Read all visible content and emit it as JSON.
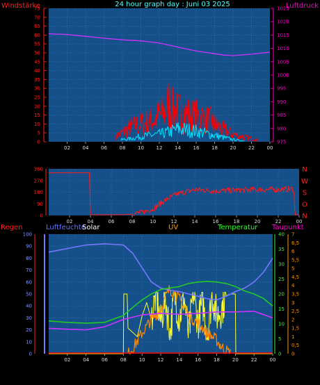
{
  "colors": {
    "plot_bg": "#15508a",
    "grid": "#3f78b0",
    "wind": "#ff0000",
    "gust": "#00e5ff",
    "pressure": "#cc33ff",
    "direction": "#ff1a1a",
    "humidity": "#7777ff",
    "solar": "#ffff33",
    "uv": "#ff8800",
    "temperature": "#22cc22",
    "dewpoint": "#cc33ff",
    "rain": "#ff0000",
    "label_red": "#ff2222",
    "label_magenta": "#ff00cc",
    "label_cyan": "#55ffff",
    "label_white": "#ffffff",
    "label_orange": "#ff9900",
    "label_green": "#33ff33",
    "tick_yellow": "#ffcc00",
    "tick_cyan": "#00ffff"
  },
  "chart_data": [
    {
      "type": "line",
      "title": "24 hour graph day : Juni 03 2025",
      "x_ticks": [
        "02",
        "04",
        "06",
        "08",
        "10",
        "12",
        "14",
        "16",
        "18",
        "20",
        "22",
        "00"
      ],
      "left_axis": {
        "label": "Windstärke",
        "ticks": [
          "0",
          "5",
          "10",
          "15",
          "20",
          "25",
          "30",
          "35",
          "40",
          "45",
          "50",
          "55",
          "60",
          "65",
          "70",
          "75"
        ],
        "range": [
          0,
          75
        ]
      },
      "right_axis": {
        "label": "Luftdruck",
        "ticks": [
          "975",
          "980",
          "985",
          "990",
          "995",
          "1000",
          "1005",
          "1010",
          "1015",
          "1020",
          "1025"
        ],
        "range": [
          975,
          1025
        ]
      },
      "series": [
        {
          "key": "pressure",
          "axis": "right",
          "x": [
            0,
            2,
            4,
            6,
            8,
            10,
            12,
            14,
            16,
            18,
            19,
            20,
            22,
            24
          ],
          "values": [
            1015.5,
            1015.2,
            1014.5,
            1013.8,
            1013.2,
            1012.8,
            1012.0,
            1010.5,
            1009.0,
            1008.0,
            1007.5,
            1007.3,
            1007.8,
            1008.6
          ]
        },
        {
          "key": "wind",
          "axis": "left",
          "x": [
            7.5,
            8.5,
            9.5,
            10.5,
            11.5,
            12.5,
            13.0,
            13.5,
            14.5,
            15.5,
            16.5,
            17.5,
            18.5,
            19.5,
            20.5,
            21.5,
            22.5
          ],
          "values": [
            6,
            12,
            16,
            18,
            22,
            28,
            37,
            30,
            28,
            25,
            24,
            20,
            14,
            9,
            6,
            4,
            2
          ]
        },
        {
          "key": "gust",
          "axis": "left",
          "x": [
            8.0,
            9.0,
            10.0,
            11.0,
            12.0,
            13.0,
            14.0,
            15.0,
            16.0,
            17.0,
            18.0,
            19.0,
            20.0,
            21.0
          ],
          "values": [
            2,
            3,
            5,
            6,
            7,
            9,
            12,
            11,
            10,
            8,
            6,
            4,
            2,
            1
          ]
        }
      ]
    },
    {
      "type": "line",
      "x_ticks": [
        "02",
        "04",
        "06",
        "08",
        "10",
        "12",
        "14",
        "16",
        "18",
        "20",
        "22",
        "00"
      ],
      "left_axis": {
        "ticks": [
          "0",
          "90",
          "180",
          "270",
          "360"
        ],
        "range": [
          0,
          360
        ]
      },
      "right_axis": {
        "ticks": [
          "N",
          "W",
          "S",
          "O",
          "N"
        ]
      },
      "series": [
        {
          "key": "direction",
          "x": [
            0,
            3.9,
            4.0,
            6.5,
            8.0,
            9.0,
            10.0,
            11.0,
            12.0,
            13.0,
            14.0,
            15.0,
            16.0,
            18.0,
            20.0,
            22.0,
            23.5,
            23.6,
            24.0
          ],
          "values": [
            330,
            330,
            5,
            5,
            10,
            25,
            50,
            110,
            155,
            180,
            200,
            195,
            190,
            195,
            200,
            200,
            205,
            5,
            5
          ]
        }
      ]
    },
    {
      "type": "line",
      "x_ticks": [
        "02",
        "04",
        "06",
        "08",
        "10",
        "12",
        "14",
        "16",
        "18",
        "20",
        "22",
        "00"
      ],
      "labels": [
        "Regen",
        "Luftfeuchte",
        "Solar",
        "UV",
        "Temperatur",
        "Taupunkt"
      ],
      "humidity_axis": {
        "ticks": [
          "0",
          "10",
          "20",
          "30",
          "40",
          "50",
          "60",
          "70",
          "80",
          "90",
          "100"
        ],
        "range": [
          0,
          100
        ]
      },
      "temperature_axis": {
        "ticks": [
          "0",
          "5",
          "10",
          "15",
          "20",
          "25",
          "30",
          "35",
          "40"
        ],
        "range": [
          0,
          40
        ]
      },
      "uv_axis": {
        "ticks": [
          "0",
          "0,5",
          "1",
          "1,5",
          "2",
          "2,5",
          "3",
          "3,5",
          "4",
          "4,5",
          "5",
          "5,5",
          "6",
          "6,5",
          "7"
        ],
        "range": [
          0,
          7
        ]
      },
      "series": [
        {
          "key": "humidity",
          "axis": "humidity",
          "x": [
            0,
            2,
            4,
            6,
            8,
            9,
            10,
            11,
            12,
            13,
            14,
            15,
            16,
            17,
            18,
            19,
            20,
            21,
            22,
            23,
            24
          ],
          "values": [
            85,
            88,
            91,
            92,
            91,
            84,
            72,
            60,
            55,
            53,
            52,
            50,
            48,
            46,
            45,
            48,
            52,
            55,
            60,
            68,
            80
          ]
        },
        {
          "key": "temperature",
          "axis": "temperature",
          "x": [
            0,
            2,
            4,
            6,
            8,
            9,
            10,
            11,
            12,
            13,
            14,
            15,
            16,
            17,
            18,
            19,
            20,
            21,
            22,
            23,
            24
          ],
          "values": [
            11.0,
            10.5,
            10.2,
            10.5,
            12.8,
            15.5,
            18.0,
            20.0,
            21.5,
            22.0,
            22.5,
            23.5,
            24.0,
            24.2,
            24.0,
            23.5,
            22.5,
            21.0,
            20.0,
            18.5,
            16.0
          ]
        },
        {
          "key": "dewpoint",
          "axis": "temperature",
          "x": [
            0,
            2,
            4,
            6,
            8,
            10,
            12,
            14,
            16,
            18,
            20,
            22,
            24
          ],
          "values": [
            8.5,
            8.2,
            8.0,
            9.0,
            11.5,
            13.0,
            13.5,
            13.2,
            13.5,
            14.0,
            14.0,
            14.2,
            12.0
          ]
        },
        {
          "key": "solar",
          "axis": "uv",
          "x": [
            0,
            8.0,
            8.05,
            8.4,
            8.5,
            9.5,
            10.0,
            10.5,
            11.0,
            11.5,
            12.0,
            12.5,
            13.0,
            13.5,
            14.0,
            14.5,
            15.0,
            15.5,
            16.0,
            16.5,
            17.0,
            17.5,
            18.0,
            18.5,
            19.0,
            19.5,
            20.0,
            20.05,
            24.0
          ],
          "values": [
            0,
            0,
            3.5,
            3.5,
            1.5,
            1.0,
            2.2,
            3.0,
            2.0,
            3.6,
            1.8,
            3.3,
            1.2,
            3.5,
            2.0,
            3.4,
            1.0,
            3.6,
            1.8,
            3.1,
            1.0,
            3.5,
            2.2,
            2.6,
            3.4,
            3.5,
            3.5,
            0,
            0
          ]
        },
        {
          "key": "uv",
          "axis": "uv",
          "x": [
            8.5,
            9.0,
            10.0,
            11.0,
            12.0,
            12.5,
            13.0,
            13.5,
            14.0,
            14.5,
            15.0,
            16.0,
            17.0,
            18.0,
            18.5,
            19.0,
            19.5
          ],
          "values": [
            0,
            0.3,
            1.2,
            2.0,
            2.6,
            3.3,
            3.8,
            3.5,
            3.2,
            2.8,
            2.2,
            1.8,
            1.2,
            0.8,
            0.4,
            0.2,
            0
          ]
        },
        {
          "key": "rain",
          "axis": "humidity",
          "x": [
            0,
            24
          ],
          "values": [
            0,
            0
          ]
        }
      ]
    }
  ]
}
